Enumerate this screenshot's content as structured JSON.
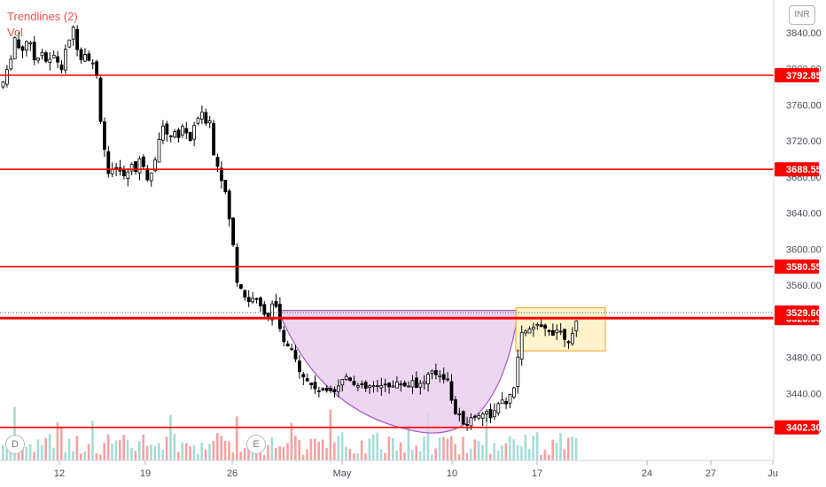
{
  "legend": {
    "trendlines": "Trendlines (2)",
    "vol": "Vol"
  },
  "currency": "INR",
  "events": {
    "dividend": "D",
    "earnings": "E"
  },
  "colors": {
    "level_line": "#ff0000",
    "up_candle": "#ffffff",
    "down_candle": "#000000",
    "vol_up": "#a7dbd8",
    "vol_down": "#f4a3a3",
    "cup_fill": "#e9d0f0",
    "cup_stroke": "#9b3bb8",
    "handle_fill": "#fff3c4",
    "handle_stroke": "#f5a623"
  },
  "chart_data": {
    "type": "candlestick",
    "y_axis": {
      "ticks": [
        3840,
        3800,
        3760,
        3720,
        3680,
        3640,
        3600,
        3560,
        3480,
        3440,
        3400
      ],
      "range": [
        3360,
        3860
      ]
    },
    "x_axis": {
      "ticks": [
        "12",
        "19",
        "26",
        "May",
        "10",
        "17",
        "24",
        "27",
        "Ju"
      ]
    },
    "levels": [
      {
        "label": "3792.85",
        "value": 3792.85
      },
      {
        "label": "3688.55",
        "value": 3688.55
      },
      {
        "label": "3580.55",
        "value": 3580.55
      },
      {
        "label": "3523.50",
        "value": 3523.5
      },
      {
        "label": "3402.30",
        "value": 3402.3
      }
    ],
    "last_price": {
      "label": "3529.60",
      "value": 3529.6
    },
    "patterns": {
      "cup": {
        "rim": 3532,
        "bottom": 3402
      },
      "handle": {
        "top": 3532,
        "bottom": 3492
      }
    },
    "price_path": [
      [
        0,
        3780
      ],
      [
        8,
        3800
      ],
      [
        15,
        3835
      ],
      [
        22,
        3818
      ],
      [
        30,
        3835
      ],
      [
        38,
        3808
      ],
      [
        45,
        3822
      ],
      [
        52,
        3805
      ],
      [
        60,
        3815
      ],
      [
        68,
        3800
      ],
      [
        75,
        3830
      ],
      [
        82,
        3845
      ],
      [
        88,
        3812
      ],
      [
        95,
        3818
      ],
      [
        102,
        3808
      ],
      [
        108,
        3790
      ],
      [
        112,
        3745
      ],
      [
        116,
        3715
      ],
      [
        120,
        3680
      ],
      [
        126,
        3685
      ],
      [
        134,
        3690
      ],
      [
        140,
        3675
      ],
      [
        146,
        3700
      ],
      [
        152,
        3685
      ],
      [
        158,
        3705
      ],
      [
        164,
        3678
      ],
      [
        170,
        3690
      ],
      [
        176,
        3710
      ],
      [
        182,
        3740
      ],
      [
        188,
        3720
      ],
      [
        194,
        3735
      ],
      [
        200,
        3722
      ],
      [
        206,
        3740
      ],
      [
        212,
        3718
      ],
      [
        218,
        3735
      ],
      [
        224,
        3752
      ],
      [
        230,
        3742
      ],
      [
        236,
        3745
      ],
      [
        240,
        3700
      ],
      [
        246,
        3690
      ],
      [
        252,
        3665
      ],
      [
        258,
        3630
      ],
      [
        262,
        3600
      ],
      [
        266,
        3565
      ],
      [
        272,
        3555
      ],
      [
        278,
        3540
      ],
      [
        284,
        3548
      ],
      [
        290,
        3538
      ],
      [
        296,
        3532
      ],
      [
        302,
        3525
      ],
      [
        308,
        3545
      ],
      [
        314,
        3512
      ],
      [
        318,
        3495
      ],
      [
        322,
        3495
      ],
      [
        328,
        3485
      ],
      [
        334,
        3472
      ],
      [
        340,
        3462
      ],
      [
        346,
        3452
      ],
      [
        352,
        3448
      ],
      [
        358,
        3444
      ],
      [
        364,
        3440
      ],
      [
        370,
        3448
      ],
      [
        376,
        3444
      ],
      [
        382,
        3452
      ],
      [
        390,
        3460
      ],
      [
        396,
        3455
      ],
      [
        402,
        3448
      ],
      [
        410,
        3445
      ],
      [
        418,
        3448
      ],
      [
        426,
        3445
      ],
      [
        434,
        3452
      ],
      [
        442,
        3448
      ],
      [
        450,
        3452
      ],
      [
        458,
        3448
      ],
      [
        464,
        3455
      ],
      [
        470,
        3448
      ],
      [
        476,
        3452
      ],
      [
        482,
        3460
      ],
      [
        488,
        3462
      ],
      [
        494,
        3462
      ],
      [
        500,
        3458
      ],
      [
        504,
        3458
      ],
      [
        508,
        3430
      ],
      [
        512,
        3420
      ],
      [
        518,
        3412
      ],
      [
        524,
        3405
      ],
      [
        530,
        3412
      ],
      [
        536,
        3415
      ],
      [
        542,
        3420
      ],
      [
        548,
        3418
      ],
      [
        554,
        3415
      ],
      [
        560,
        3425
      ],
      [
        566,
        3430
      ],
      [
        572,
        3432
      ],
      [
        578,
        3442
      ],
      [
        582,
        3475
      ],
      [
        586,
        3502
      ],
      [
        592,
        3512
      ],
      [
        598,
        3508
      ],
      [
        604,
        3515
      ],
      [
        610,
        3510
      ],
      [
        616,
        3512
      ],
      [
        622,
        3508
      ],
      [
        628,
        3512
      ],
      [
        634,
        3505
      ],
      [
        640,
        3500
      ],
      [
        646,
        3505
      ],
      [
        652,
        3530
      ]
    ]
  }
}
